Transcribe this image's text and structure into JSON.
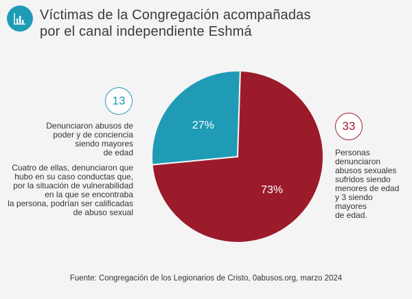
{
  "header": {
    "icon": "bar-chart-icon",
    "title_line1": "Víctimas de la Congregación acompañadas",
    "title_line2": "por el canal independiente Eshmá"
  },
  "chart_data": {
    "type": "pie",
    "slices": [
      {
        "label": "27%",
        "value": 27,
        "count": 13,
        "color": "#1f9bb6",
        "note": [
          "Denunciaron abusos de",
          "poder y de conciencia",
          "siendo mayores",
          "de edad"
        ]
      },
      {
        "label": "73%",
        "value": 73,
        "count": 33,
        "color": "#9b1b2b",
        "note": [
          "Personas",
          "denunciaron",
          "abusos sexuales",
          "sufridos siendo",
          "menores de edad",
          "y 3 siendo mayores",
          "de edad."
        ]
      }
    ]
  },
  "left_note_b": [
    "Cuatro de ellas, denunciaron que",
    "hubo en su caso conductas que,",
    "por la situación de vulnerabilidad",
    "en la que se encontraba",
    "la persona, podrían ser calificadas",
    "de abuso sexual"
  ],
  "count_left": "13",
  "count_right": "33",
  "source": "Fuente: Congregación de los Legionarios de Cristo, 0abusos.org, marzo 2024"
}
